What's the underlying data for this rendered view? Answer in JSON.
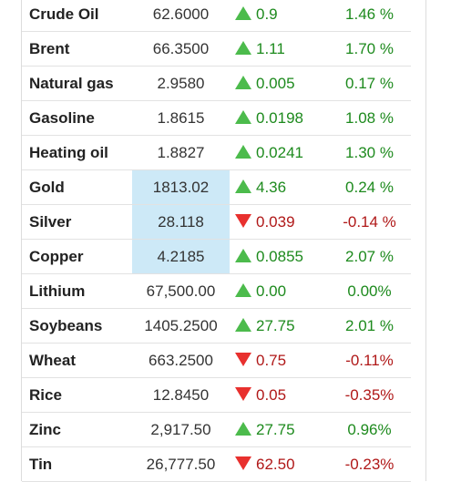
{
  "colors": {
    "up_text": "#1d8a1d",
    "down_text": "#b01818",
    "up_arrow": "#4cbb4c",
    "down_arrow": "#e8302e",
    "highlight": "#cde9f7"
  },
  "rows": [
    {
      "name": "Crude Oil",
      "price": "62.6000",
      "direction": "up",
      "change": "0.9",
      "percent": "1.46 %",
      "highlight": false
    },
    {
      "name": "Brent",
      "price": "66.3500",
      "direction": "up",
      "change": "1.11",
      "percent": "1.70 %",
      "highlight": false
    },
    {
      "name": "Natural gas",
      "price": "2.9580",
      "direction": "up",
      "change": "0.005",
      "percent": "0.17 %",
      "highlight": false
    },
    {
      "name": "Gasoline",
      "price": "1.8615",
      "direction": "up",
      "change": "0.0198",
      "percent": "1.08 %",
      "highlight": false
    },
    {
      "name": "Heating oil",
      "price": "1.8827",
      "direction": "up",
      "change": "0.0241",
      "percent": "1.30 %",
      "highlight": false
    },
    {
      "name": "Gold",
      "price": "1813.02",
      "direction": "up",
      "change": "4.36",
      "percent": "0.24 %",
      "highlight": true
    },
    {
      "name": "Silver",
      "price": "28.118",
      "direction": "down",
      "change": "0.039",
      "percent": "-0.14 %",
      "highlight": true
    },
    {
      "name": "Copper",
      "price": "4.2185",
      "direction": "up",
      "change": "0.0855",
      "percent": "2.07 %",
      "highlight": true
    },
    {
      "name": "Lithium",
      "price": "67,500.00",
      "direction": "up",
      "change": "0.00",
      "percent": "0.00%",
      "highlight": false
    },
    {
      "name": "Soybeans",
      "price": "1405.2500",
      "direction": "up",
      "change": "27.75",
      "percent": "2.01 %",
      "highlight": false
    },
    {
      "name": "Wheat",
      "price": "663.2500",
      "direction": "down",
      "change": "0.75",
      "percent": "-0.11%",
      "highlight": false
    },
    {
      "name": "Rice",
      "price": "12.8450",
      "direction": "down",
      "change": "0.05",
      "percent": "-0.35%",
      "highlight": false
    },
    {
      "name": "Zinc",
      "price": "2,917.50",
      "direction": "up",
      "change": "27.75",
      "percent": "0.96%",
      "highlight": false
    },
    {
      "name": "Tin",
      "price": "26,777.50",
      "direction": "down",
      "change": "62.50",
      "percent": "-0.23%",
      "highlight": false
    }
  ]
}
